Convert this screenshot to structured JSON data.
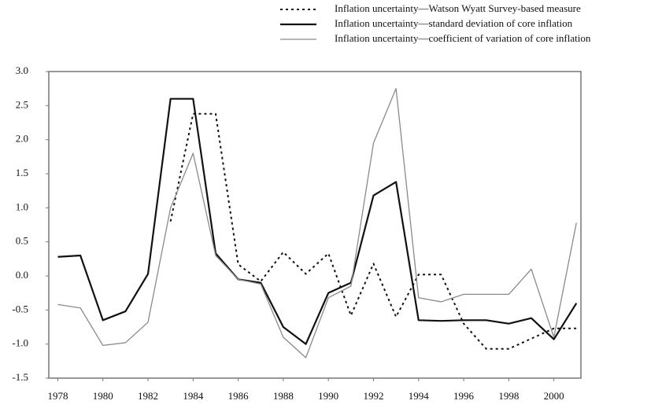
{
  "chart_data": {
    "type": "line",
    "x": [
      1978,
      1979,
      1980,
      1981,
      1982,
      1983,
      1984,
      1985,
      1986,
      1987,
      1988,
      1989,
      1990,
      1991,
      1992,
      1993,
      1994,
      1995,
      1996,
      1997,
      1998,
      1999,
      2000,
      2001
    ],
    "series": [
      {
        "name": "Inflation uncertainty—Watson Wyatt Survey-based measure",
        "color": "#111111",
        "style": "dotted",
        "values": [
          null,
          null,
          null,
          null,
          null,
          0.8,
          2.38,
          2.38,
          0.17,
          -0.08,
          0.35,
          0.03,
          0.33,
          -0.58,
          0.18,
          -0.6,
          0.02,
          0.02,
          -0.7,
          -1.07,
          -1.07,
          -0.92,
          -0.77,
          -0.77
        ]
      },
      {
        "name": "Inflation uncertainty—standard deviation of core inflation",
        "color": "#111111",
        "style": "thick",
        "values": [
          0.28,
          0.3,
          -0.65,
          -0.52,
          0.03,
          2.6,
          2.6,
          0.33,
          -0.05,
          -0.1,
          -0.75,
          -1.0,
          -0.25,
          -0.1,
          1.18,
          1.38,
          -0.65,
          -0.66,
          -0.65,
          -0.65,
          -0.7,
          -0.62,
          -0.93,
          -0.4
        ]
      },
      {
        "name": "Inflation uncertainty—coefficient of variation of core inflation",
        "color": "#8a8a8a",
        "style": "thin",
        "values": [
          -0.42,
          -0.47,
          -1.02,
          -0.98,
          -0.68,
          1.0,
          1.8,
          0.3,
          -0.05,
          -0.12,
          -0.9,
          -1.2,
          -0.32,
          -0.15,
          1.95,
          2.75,
          -0.32,
          -0.38,
          -0.27,
          -0.27,
          -0.27,
          0.1,
          -0.9,
          0.78
        ]
      }
    ],
    "xlim": [
      1977.6,
      2001.2
    ],
    "xticks": [
      1978,
      1980,
      1982,
      1984,
      1986,
      1988,
      1990,
      1992,
      1994,
      1996,
      1998,
      2000
    ],
    "ylim": [
      -1.5,
      3
    ],
    "yticks": [
      {
        "value": 3,
        "label": "3.0"
      },
      2.5,
      {
        "value": 2,
        "label": "2.0"
      },
      1.5,
      {
        "value": 1,
        "label": "1.0"
      },
      0.5,
      {
        "value": 0,
        "label": "0.0"
      },
      -0.5,
      {
        "value": -1,
        "label": "-1.0"
      },
      -1.5
    ],
    "legend": "top-right"
  }
}
